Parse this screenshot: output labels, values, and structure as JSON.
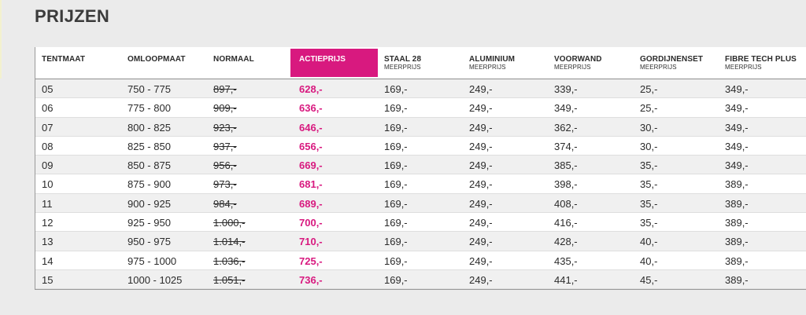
{
  "title": "PRIJZEN",
  "colors": {
    "accent": "#d8197f",
    "alt_row": "#f0f0f0",
    "page_bg": "#ebebeb"
  },
  "headers": [
    {
      "label": "TENTMAAT",
      "sub": ""
    },
    {
      "label": "OMLOOPMAAT",
      "sub": ""
    },
    {
      "label": "NORMAAL",
      "sub": ""
    },
    {
      "label": "ACTIEPRIJS",
      "sub": ""
    },
    {
      "label": "STAAL 28",
      "sub": "MEERPRIJS"
    },
    {
      "label": "ALUMINIUM",
      "sub": "MEERPRIJS"
    },
    {
      "label": "VOORWAND",
      "sub": "MEERPRIJS"
    },
    {
      "label": "GORDIJNENSET",
      "sub": "MEERPRIJS"
    },
    {
      "label": "FIBRE TECH PLUS",
      "sub": "MEERPRIJS"
    }
  ],
  "rows": [
    [
      "05",
      "750 - 775",
      "897,-",
      "628,-",
      "169,-",
      "249,-",
      "339,-",
      "25,-",
      "349,-"
    ],
    [
      "06",
      "775 - 800",
      "909,-",
      "636,-",
      "169,-",
      "249,-",
      "349,-",
      "25,-",
      "349,-"
    ],
    [
      "07",
      "800 - 825",
      "923,-",
      "646,-",
      "169,-",
      "249,-",
      "362,-",
      "30,-",
      "349,-"
    ],
    [
      "08",
      "825 - 850",
      "937,-",
      "656,-",
      "169,-",
      "249,-",
      "374,-",
      "30,-",
      "349,-"
    ],
    [
      "09",
      "850 - 875",
      "956,-",
      "669,-",
      "169,-",
      "249,-",
      "385,-",
      "35,-",
      "349,-"
    ],
    [
      "10",
      "875 - 900",
      "973,-",
      "681,-",
      "169,-",
      "249,-",
      "398,-",
      "35,-",
      "389,-"
    ],
    [
      "11",
      "900 - 925",
      "984,-",
      "689,-",
      "169,-",
      "249,-",
      "408,-",
      "35,-",
      "389,-"
    ],
    [
      "12",
      "925 - 950",
      "1.000,-",
      "700,-",
      "169,-",
      "249,-",
      "416,-",
      "35,-",
      "389,-"
    ],
    [
      "13",
      "950 - 975",
      "1.014,-",
      "710,-",
      "169,-",
      "249,-",
      "428,-",
      "40,-",
      "389,-"
    ],
    [
      "14",
      "975 - 1000",
      "1.036,-",
      "725,-",
      "169,-",
      "249,-",
      "435,-",
      "40,-",
      "389,-"
    ],
    [
      "15",
      "1000 - 1025",
      "1.051,-",
      "736,-",
      "169,-",
      "249,-",
      "441,-",
      "45,-",
      "389,-"
    ]
  ]
}
